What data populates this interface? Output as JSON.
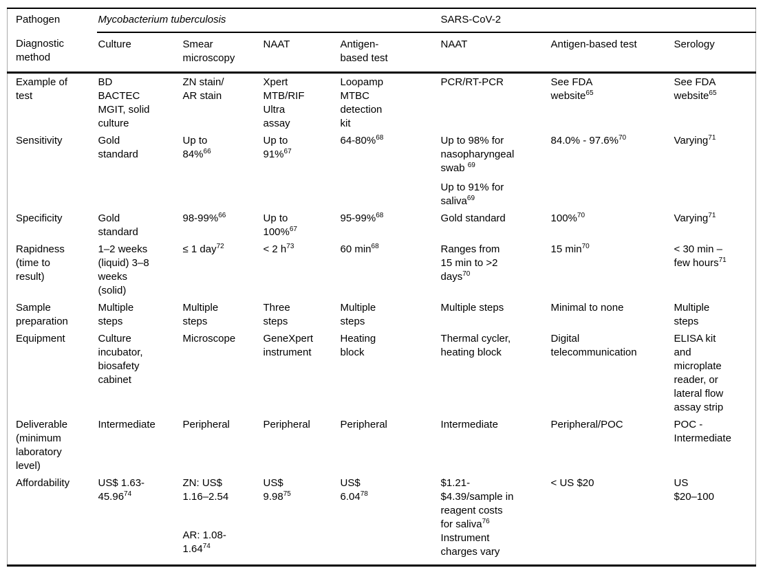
{
  "page": {
    "background_color": "#ffffff",
    "text_color": "#000000",
    "rule_color": "#000000"
  },
  "table": {
    "pathogen_header": {
      "label": "Pathogen",
      "groups": [
        {
          "label": "Mycobacterium tuberculosis",
          "span": 4
        },
        {
          "label": "SARS-CoV-2",
          "span": 3
        }
      ]
    },
    "method_header": {
      "label": "Diagnostic\nmethod",
      "columns": [
        "Culture",
        "Smear\nmicroscopy",
        "NAAT",
        "Antigen-\nbased test",
        "NAAT",
        "Antigen-based test",
        "Serology"
      ]
    },
    "rows": [
      {
        "label": "Example of\ntest",
        "cells": [
          "BD\nBACTEC\nMGIT, solid\nculture",
          "ZN stain/\nAR stain",
          "Xpert\nMTB/RIF\nUltra\nassay",
          "Loopamp\nMTBC\ndetection\nkit",
          "PCR/RT-PCR",
          "See FDA\nwebsite^65",
          "See FDA\nwebsite^65"
        ]
      },
      {
        "label": "Sensitivity",
        "cells": [
          "Gold\nstandard",
          "Up to\n84%^66",
          "Up to\n91%^67",
          "64-80%^68",
          "Up to 98% for\nnasopharyngeal\nswab ^69\n\nUp to 91% for\nsaliva^69",
          "84.0% - 97.6%^70",
          "Varying^71"
        ]
      },
      {
        "label": "Specificity",
        "cells": [
          "Gold\nstandard",
          "98-99%^66",
          "Up to\n100%^67",
          "95-99%^68",
          "Gold standard",
          "100%^70",
          "Varying^71"
        ]
      },
      {
        "label": "Rapidness\n(time to\nresult)",
        "cells": [
          "1–2 weeks\n(liquid) 3–8\nweeks\n(solid)",
          "≤ 1 day^72",
          "< 2 h^73",
          "60 min^68",
          "Ranges from\n15 min to >2\ndays^70",
          "15 min^70",
          "< 30 min –\nfew hours^71"
        ]
      },
      {
        "label": "Sample\npreparation",
        "cells": [
          "Multiple\nsteps",
          "Multiple\nsteps",
          "Three\nsteps",
          "Multiple\nsteps",
          "Multiple steps",
          "Minimal to none",
          "Multiple\nsteps"
        ]
      },
      {
        "label": "Equipment",
        "cells": [
          "Culture\nincubator,\nbiosafety\ncabinet",
          "Microscope",
          "GeneXpert\ninstrument",
          "Heating\nblock",
          "Thermal cycler,\nheating block",
          "Digital\ntelecommunication",
          "ELISA kit\nand\nmicroplate\nreader, or\nlateral flow\nassay strip"
        ]
      },
      {
        "label": "Deliverable\n(minimum\nlaboratory\nlevel)",
        "cells": [
          "Intermediate",
          "Peripheral",
          "Peripheral",
          "Peripheral",
          "Intermediate",
          "Peripheral/POC",
          "POC -\nIntermediate"
        ]
      },
      {
        "label": "Affordability",
        "cells": [
          "US$ 1.63-\n45.96^74",
          "ZN: US$\n1.16–2.54\n\n \n\nAR: 1.08-\n1.64^74",
          "US$\n9.98^75",
          "US$\n6.04^78",
          "$1.21-\n$4.39/sample in\nreagent costs\nfor saliva^76\nInstrument\ncharges vary",
          "< US $20",
          "US\n$20–100"
        ]
      }
    ]
  }
}
